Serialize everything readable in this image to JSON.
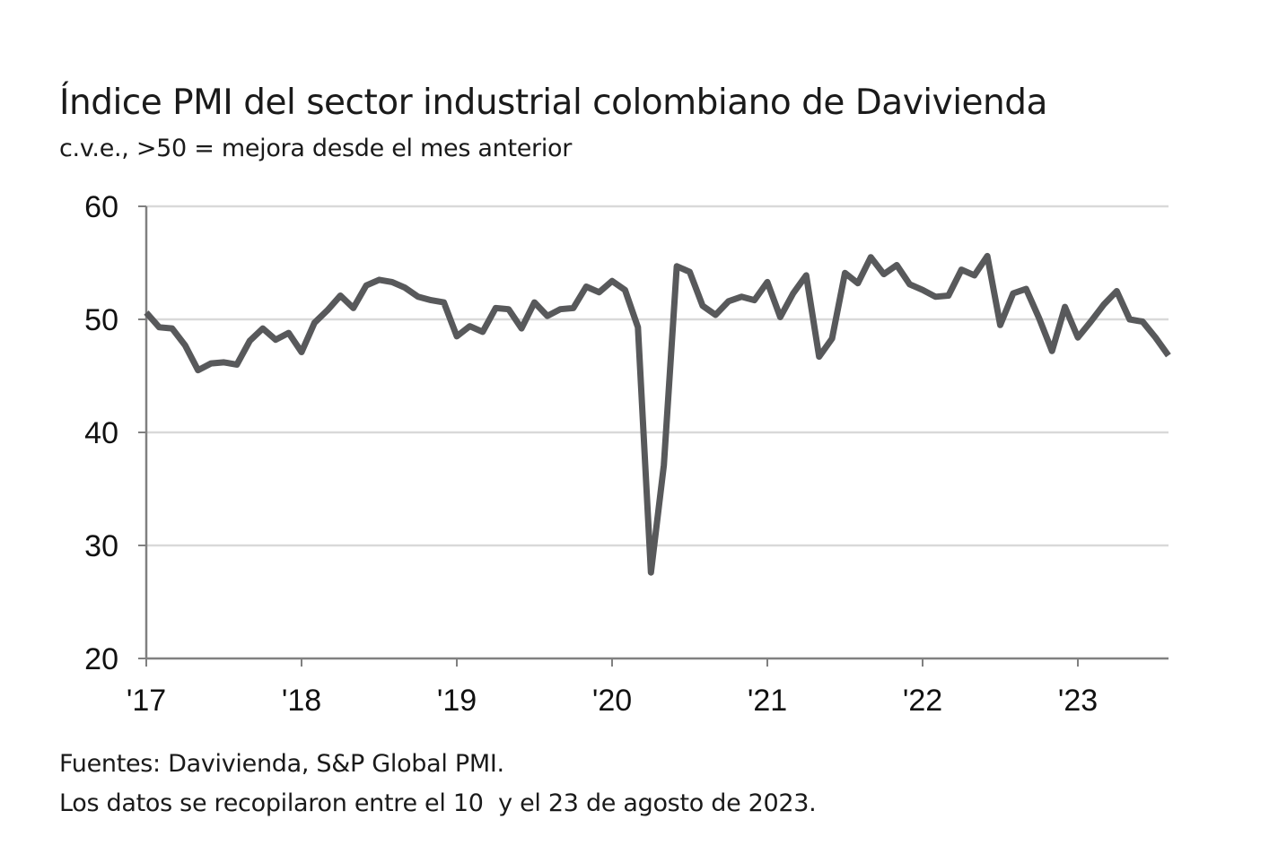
{
  "chart_data": {
    "type": "line",
    "title": "Índice PMI del sector industrial colombiano de Davivienda",
    "subtitle": "c.v.e., >50 = mejora desde el mes anterior",
    "xlabel": "",
    "ylabel": "",
    "ylim": [
      20,
      60
    ],
    "yticks": [
      "20",
      "30",
      "40",
      "50",
      "60"
    ],
    "xticks": [
      "'17",
      "'18",
      "'19",
      "'20",
      "'21",
      "'22",
      "'23"
    ],
    "x_start": "2017-01",
    "x_end": "2023-08",
    "frequency": "monthly",
    "grid": true,
    "line_color": "#58595b",
    "series": [
      {
        "values": [
          50.6,
          49.3,
          49.2,
          47.7,
          45.5,
          46.1,
          46.2,
          46.0,
          48.1,
          49.2,
          48.2,
          48.8,
          47.1,
          49.7,
          50.8,
          52.1,
          51.0,
          53.0,
          53.5,
          53.3,
          52.8,
          52.0,
          51.7,
          51.5,
          48.5,
          49.4,
          48.9,
          51.0,
          50.9,
          49.2,
          51.5,
          50.3,
          50.9,
          51.0,
          52.9,
          52.4,
          53.4,
          52.6,
          49.3,
          27.6,
          37.1,
          54.7,
          54.2,
          51.2,
          50.4,
          51.6,
          52.0,
          51.7,
          53.3,
          50.2,
          52.3,
          53.9,
          46.7,
          48.3,
          54.1,
          53.2,
          55.5,
          54.0,
          54.8,
          53.1,
          52.6,
          52.0,
          52.1,
          54.4,
          53.9,
          55.6,
          49.5,
          52.3,
          52.7,
          50.1,
          47.2,
          51.1,
          48.4,
          49.8,
          51.3,
          52.5,
          50.0,
          49.8,
          48.4,
          46.8
        ]
      }
    ]
  },
  "footer": {
    "sources": "Fuentes: Davivienda, S&P Global PMI.",
    "note": "Los datos se recopilaron entre el 10  y el 23 de agosto de 2023."
  }
}
